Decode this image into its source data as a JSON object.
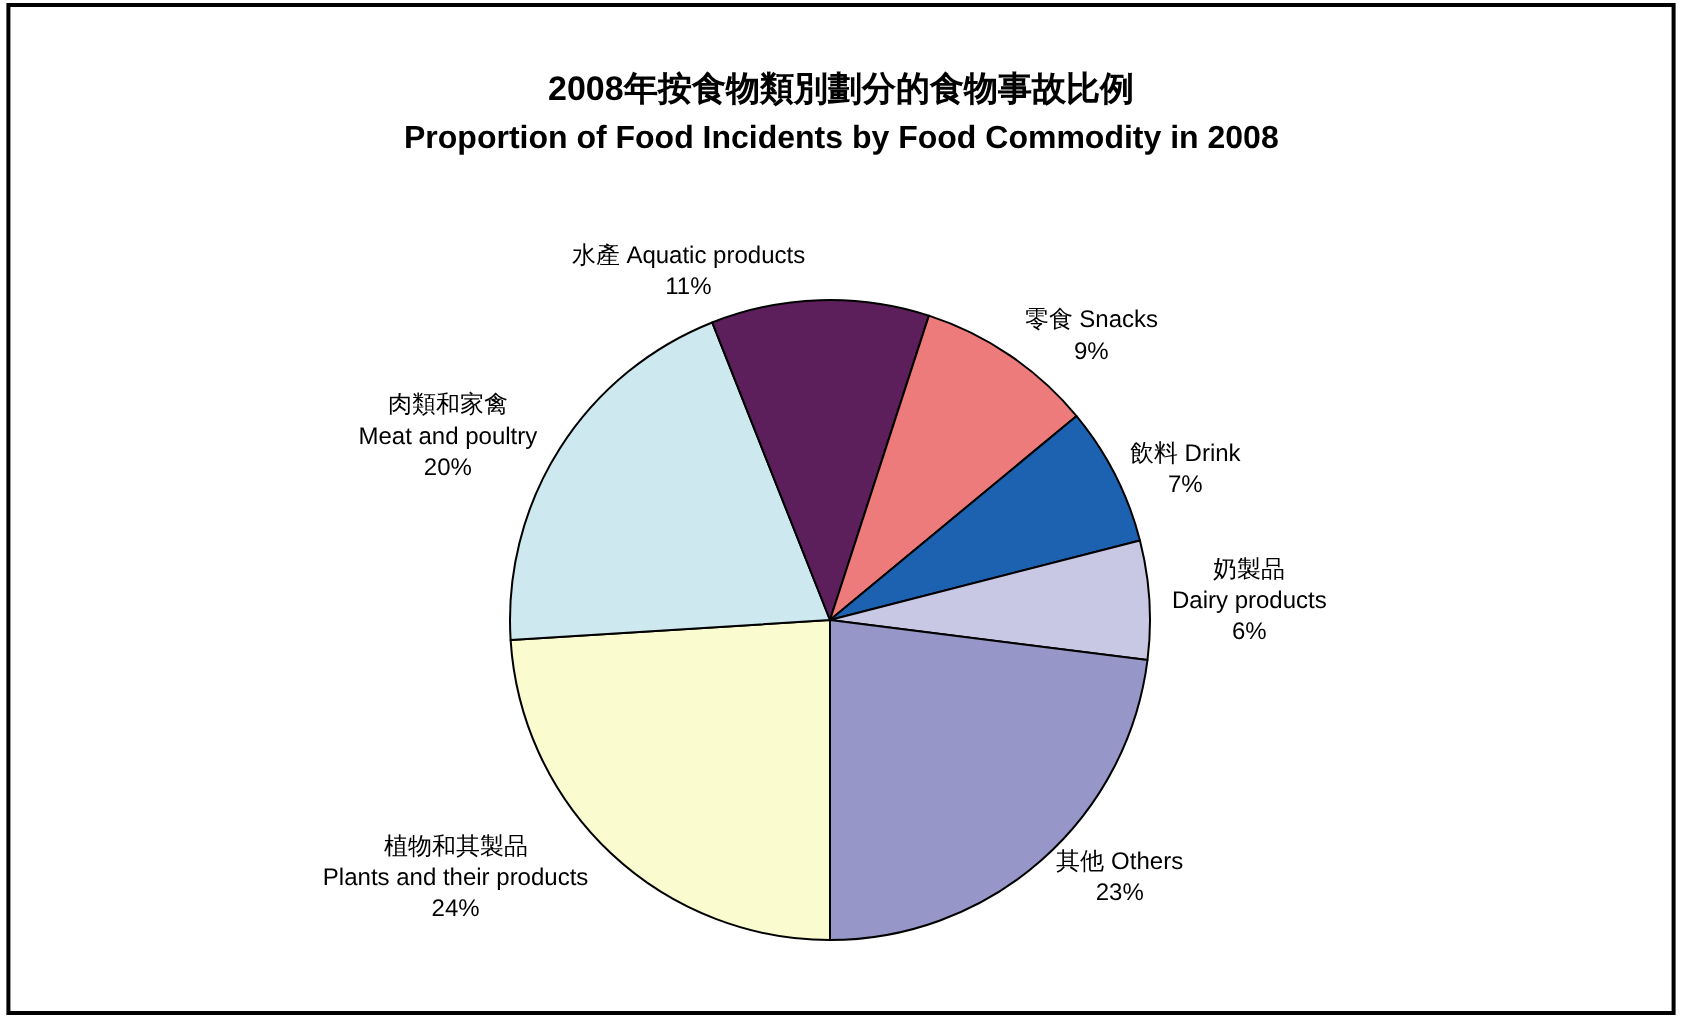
{
  "chart_data": {
    "type": "pie",
    "title": "2008年按食物類別劃分的食物事故比例",
    "subtitle": "Proportion of Food Incidents by Food Commodity in 2008",
    "categories": [
      "植物和其製品\nPlants and their products",
      "肉類和家禽\nMeat and poultry",
      "水產 Aquatic products",
      "零食 Snacks",
      "飲料 Drink",
      "奶製品\nDairy products",
      "其他 Others"
    ],
    "values": [
      24,
      20,
      11,
      9,
      7,
      6,
      23
    ],
    "value_labels": [
      "24%",
      "20%",
      "11%",
      "9%",
      "7%",
      "6%",
      "23%"
    ],
    "colors": [
      "#fbfbd0",
      "#cde8ee",
      "#5c1f5c",
      "#ee7b7b",
      "#1c62b0",
      "#c8c8e4",
      "#9696c8"
    ]
  }
}
